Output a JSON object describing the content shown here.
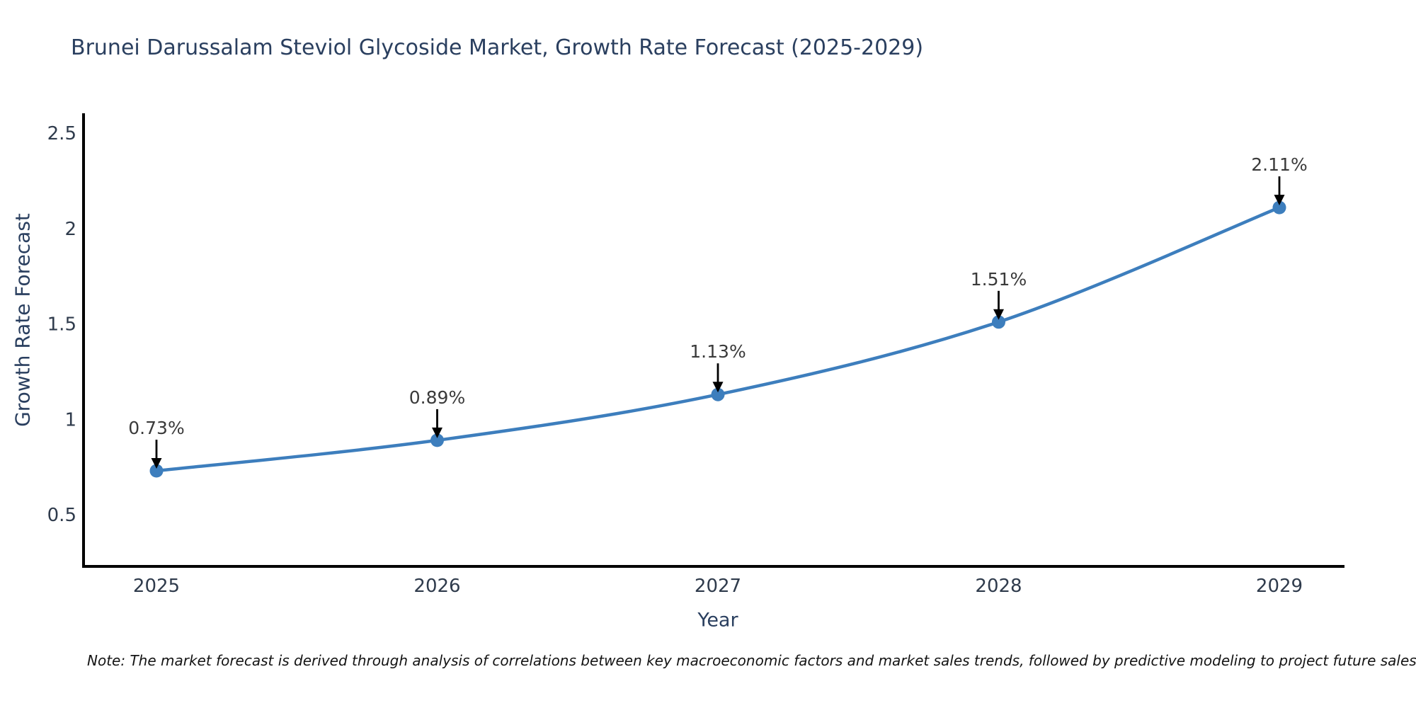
{
  "chart_data": {
    "type": "line",
    "title": "Brunei Darussalam Steviol Glycoside Market, Growth Rate Forecast (2025-2029)",
    "xlabel": "Year",
    "ylabel": "Growth Rate Forecast",
    "x": [
      2025,
      2026,
      2027,
      2028,
      2029
    ],
    "series": [
      {
        "name": "Growth Rate Forecast",
        "values": [
          0.73,
          0.89,
          1.13,
          1.51,
          2.11
        ]
      }
    ],
    "point_labels": [
      "0.73%",
      "0.89%",
      "1.13%",
      "1.51%",
      "2.11%"
    ],
    "y_ticks": [
      0.5,
      1,
      1.5,
      2,
      2.5
    ],
    "ylim": [
      0.22,
      2.6
    ],
    "grid": false,
    "legend": false,
    "line_smoothing": "spline",
    "colors": {
      "line": "#3d7ebd",
      "marker": "#3d7ebd",
      "axis": "#000000",
      "tick_text": "#2f3b4c",
      "title_text": "#2a3f5f",
      "annotation_text": "#3a3a3a",
      "arrow": "#000000"
    },
    "note": "Note: The market forecast is derived through analysis of correlations between key macroeconomic factors and market sales trends, followed by predictive modeling to project future sales"
  }
}
